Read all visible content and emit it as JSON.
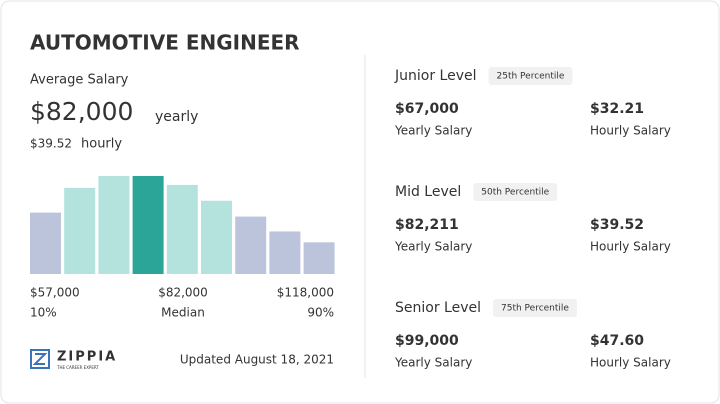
{
  "title": "AUTOMOTIVE ENGINEER",
  "average": {
    "label": "Average Salary",
    "yearly": "$82,000",
    "yearly_unit": "yearly",
    "hourly": "$39.52",
    "hourly_unit": "hourly"
  },
  "distribution": {
    "values": [
      62,
      87,
      99,
      99,
      90,
      74,
      58,
      43,
      32
    ],
    "colors": [
      "#bcc4dc",
      "#b4e2dd",
      "#b4e2dd",
      "#2aa597",
      "#b4e2dd",
      "#b4e2dd",
      "#bcc4dc",
      "#bcc4dc",
      "#bcc4dc"
    ]
  },
  "range": {
    "low": "$57,000",
    "mid": "$82,000",
    "high": "$118,000",
    "low_pct": "10%",
    "mid_label": "Median",
    "high_pct": "90%"
  },
  "logo": {
    "name": "ZIPPIA",
    "tagline": "THE CAREER EXPERT"
  },
  "updated": "Updated August 18, 2021",
  "levels": [
    {
      "name": "Junior Level",
      "percentile": "25th Percentile",
      "yearly": "$67,000",
      "yearly_label": "Yearly Salary",
      "hourly": "$32.21",
      "hourly_label": "Hourly Salary"
    },
    {
      "name": "Mid Level",
      "percentile": "50th Percentile",
      "yearly": "$82,211",
      "yearly_label": "Yearly Salary",
      "hourly": "$39.52",
      "hourly_label": "Hourly Salary"
    },
    {
      "name": "Senior Level",
      "percentile": "75th Percentile",
      "yearly": "$99,000",
      "yearly_label": "Yearly Salary",
      "hourly": "$47.60",
      "hourly_label": "Hourly Salary"
    }
  ]
}
